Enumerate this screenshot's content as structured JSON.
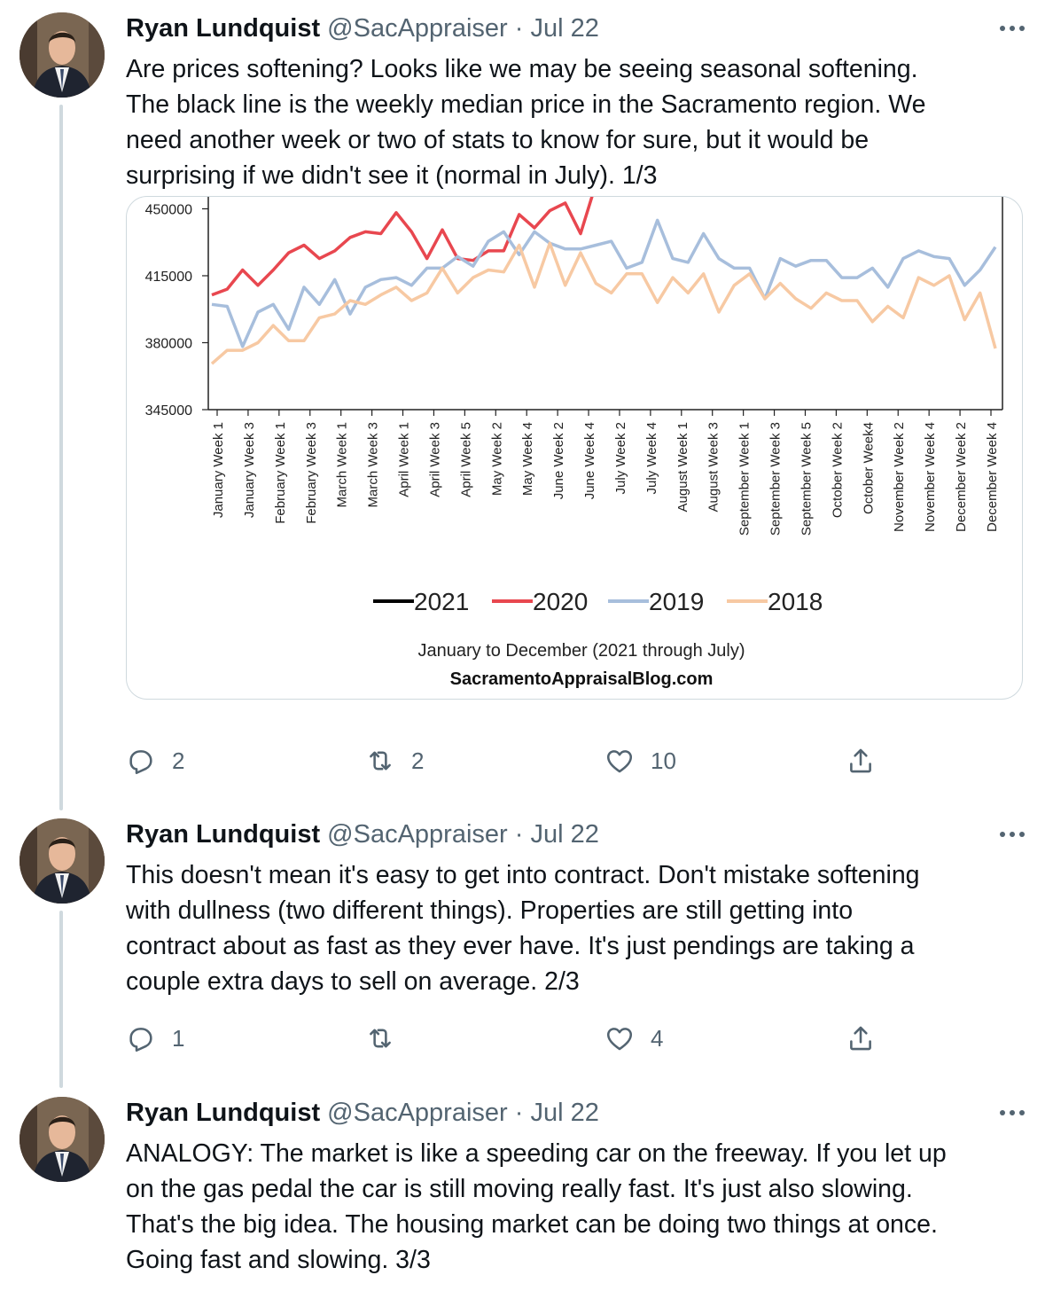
{
  "tweets": [
    {
      "name": "Ryan Lundquist",
      "handle": "@SacAppraiser",
      "date": "· Jul 22",
      "lines": [
        "Are prices softening? Looks like we may be seeing seasonal softening.",
        "The black line is the weekly median price in the Sacramento region. We",
        "need another week or two of stats to know for sure, but it would be",
        "surprising if we didn't see it (normal in July). 1/3"
      ],
      "replies": "2",
      "retweets": "2",
      "likes": "10"
    },
    {
      "name": "Ryan Lundquist",
      "handle": "@SacAppraiser",
      "date": "· Jul 22",
      "lines": [
        "This doesn't mean it's easy to get into contract. Don't mistake softening",
        "with dullness (two different things). Properties are still getting into",
        "contract about as fast as they ever have. It's just pendings are taking a",
        "couple extra days to sell on average. 2/3"
      ],
      "replies": "1",
      "retweets": "",
      "likes": "4"
    },
    {
      "name": "Ryan Lundquist",
      "handle": "@SacAppraiser",
      "date": "· Jul 22",
      "lines": [
        "ANALOGY: The market is like a speeding car on the freeway. If you let up",
        "on the gas pedal the car is still moving really fast. It's just also slowing.",
        "That's the big idea. The housing market can be doing two things at once.",
        "Going fast and slowing. 3/3"
      ]
    }
  ],
  "chart_data": {
    "type": "line",
    "y_ticks": [
      "450000",
      "415000",
      "380000",
      "345000"
    ],
    "ylim": [
      345000,
      453000
    ],
    "x_tick_labels": [
      "January Week 1",
      "January Week 3",
      "February Week 1",
      "February Week 3",
      "March Week 1",
      "March Week 3",
      "April Week 1",
      "April Week 3",
      "April Week 5",
      "May Week 2",
      "May Week 4",
      "June Week 2",
      "June Week 4",
      "July Week 2",
      "July Week 4",
      "August Week 1",
      "August Week 3",
      "September Week 1",
      "September Week 3",
      "September Week 5",
      "October Week 2",
      "October Week4",
      "November Week 2",
      "November Week 4",
      "December Week 2",
      "December Week 4"
    ],
    "series": [
      {
        "name": "2021",
        "color": "#000000",
        "values": []
      },
      {
        "name": "2020",
        "color": "#e8474f",
        "values": [
          405000,
          408000,
          418000,
          410000,
          418000,
          427000,
          431000,
          424000,
          428000,
          435000,
          438000,
          437000,
          448000,
          438000,
          424000,
          439000,
          424000,
          423000,
          428000,
          428000,
          447000,
          440000,
          449000,
          453000,
          437000,
          463000
        ]
      },
      {
        "name": "2019",
        "color": "#a7bedc",
        "values": [
          400000,
          399000,
          378000,
          396000,
          400000,
          387000,
          409000,
          400000,
          413000,
          395000,
          409000,
          413000,
          414000,
          410000,
          419000,
          419000,
          425000,
          420000,
          433000,
          438000,
          426000,
          438000,
          432000,
          429000,
          429000,
          431000,
          433000,
          419000,
          422000,
          444000,
          424000,
          422000,
          437000,
          424000,
          419000,
          419000,
          403000,
          424000,
          420000,
          423000,
          423000,
          414000,
          414000,
          419000,
          409000,
          424000,
          428000,
          425000,
          424000,
          410000,
          418000,
          430000
        ]
      },
      {
        "name": "2018",
        "color": "#f7c9a3",
        "values": [
          369000,
          376000,
          376000,
          380000,
          389000,
          381000,
          381000,
          393000,
          395000,
          402000,
          400000,
          405000,
          409000,
          402000,
          406000,
          419000,
          406000,
          414000,
          418000,
          417000,
          431000,
          409000,
          432000,
          410000,
          427000,
          411000,
          406000,
          416000,
          416000,
          401000,
          414000,
          406000,
          416000,
          396000,
          410000,
          416000,
          403000,
          411000,
          403000,
          398000,
          406000,
          402000,
          402000,
          391000,
          399000,
          393000,
          414000,
          410000,
          415000,
          392000,
          406000,
          377000
        ]
      }
    ],
    "legend": [
      "2021",
      "2020",
      "2019",
      "2018"
    ],
    "legend_position": "bottom",
    "caption": "January to December (2021 through July)",
    "source": "SacramentoAppraisalBlog.com"
  }
}
